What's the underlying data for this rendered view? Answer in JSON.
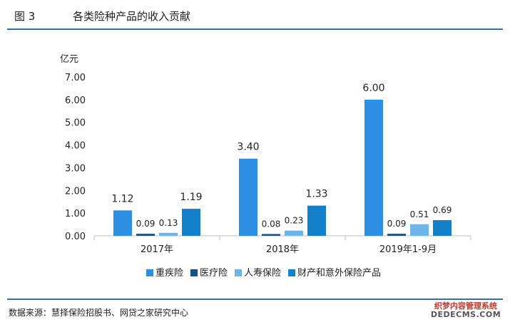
{
  "figure": {
    "number": "图 3",
    "title": "各类险种产品的收入贡献",
    "source": "数据来源：慧择保险招股书、网贷之家研究中心"
  },
  "watermark": {
    "line1": "织梦内容管理系统",
    "line2": "DEDECMS.COM"
  },
  "chart_data": {
    "type": "bar",
    "ylabel": "亿元",
    "ylim": [
      0,
      7
    ],
    "yticks": [
      "0.00",
      "1.00",
      "2.00",
      "3.00",
      "4.00",
      "5.00",
      "6.00",
      "7.00"
    ],
    "categories": [
      "2017年",
      "2018年",
      "2019年1-9月"
    ],
    "series": [
      {
        "name": "重疾险",
        "color": "#2c8fe4",
        "values": [
          1.12,
          3.4,
          6.0
        ],
        "labels": [
          "1.12",
          "3.40",
          "6.00"
        ]
      },
      {
        "name": "医疗险",
        "color": "#1a4f8c",
        "values": [
          0.09,
          0.08,
          0.09
        ],
        "labels": [
          "0.09",
          "0.08",
          "0.09"
        ]
      },
      {
        "name": "人寿保险",
        "color": "#6cb4ec",
        "values": [
          0.13,
          0.23,
          0.51
        ],
        "labels": [
          "0.13",
          "0.23",
          "0.51"
        ]
      },
      {
        "name": "财产和意外保险产品",
        "color": "#1380cc",
        "values": [
          1.19,
          1.33,
          0.69
        ],
        "labels": [
          "1.19",
          "1.33",
          "0.69"
        ]
      }
    ],
    "grid": false,
    "legend": "bottom"
  }
}
